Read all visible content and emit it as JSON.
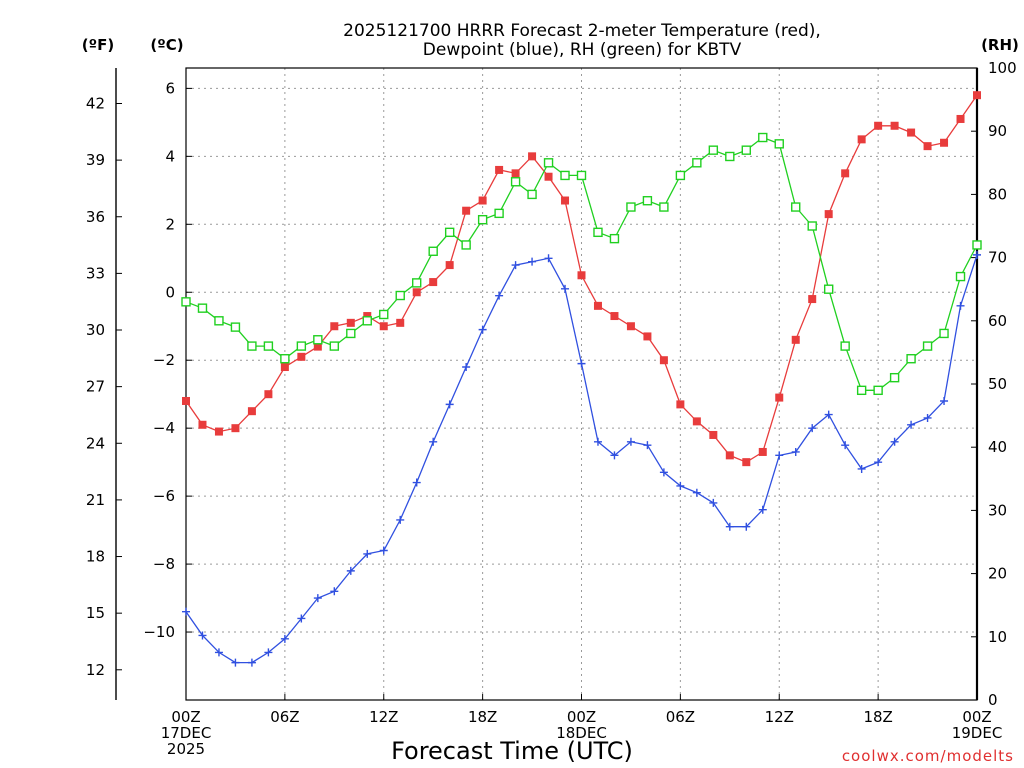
{
  "chart_data": {
    "type": "line",
    "title_line1": "2025121700 HRRR Forecast 2-meter Temperature (red),",
    "title_line2": "Dewpoint (blue), RH (green) for KBTV",
    "xlabel": "Forecast Time (UTC)",
    "credit": "coolwx.com/modelts",
    "units": {
      "fahrenheit": "(ºF)",
      "celsius": "(ºC)",
      "rh": "(RH)"
    },
    "x_hours": [
      0,
      1,
      2,
      3,
      4,
      5,
      6,
      7,
      8,
      9,
      10,
      11,
      12,
      13,
      14,
      15,
      16,
      17,
      18,
      19,
      20,
      21,
      22,
      23,
      24,
      25,
      26,
      27,
      28,
      29,
      30,
      31,
      32,
      33,
      34,
      35,
      36,
      37,
      38,
      39,
      40,
      41,
      42,
      43,
      44,
      45,
      46,
      47,
      48
    ],
    "xlim": [
      0,
      48
    ],
    "x_ticks": [
      {
        "hour": 0,
        "lines": [
          "00Z",
          "17DEC",
          "2025"
        ]
      },
      {
        "hour": 6,
        "lines": [
          "06Z"
        ]
      },
      {
        "hour": 12,
        "lines": [
          "12Z"
        ]
      },
      {
        "hour": 18,
        "lines": [
          "18Z"
        ]
      },
      {
        "hour": 24,
        "lines": [
          "00Z",
          "18DEC"
        ]
      },
      {
        "hour": 30,
        "lines": [
          "06Z"
        ]
      },
      {
        "hour": 36,
        "lines": [
          "12Z"
        ]
      },
      {
        "hour": 42,
        "lines": [
          "18Z"
        ]
      },
      {
        "hour": 48,
        "lines": [
          "00Z",
          "19DEC"
        ]
      }
    ],
    "y_celsius": {
      "lim": [
        -12,
        6.6
      ],
      "ticks": [
        "6",
        "4",
        "2",
        "0",
        "−2",
        "−4",
        "−6",
        "−8",
        "−10"
      ],
      "tick_values": [
        6,
        4,
        2,
        0,
        -2,
        -4,
        -6,
        -8,
        -10
      ]
    },
    "y_fahrenheit": {
      "ticks": [
        "42",
        "39",
        "36",
        "33",
        "30",
        "27",
        "24",
        "21",
        "18",
        "15",
        "12"
      ],
      "tick_values": [
        42,
        39,
        36,
        33,
        30,
        27,
        24,
        21,
        18,
        15,
        12
      ]
    },
    "y_rh": {
      "lim": [
        0,
        100
      ],
      "ticks": [
        "100",
        "90",
        "80",
        "70",
        "60",
        "50",
        "40",
        "30",
        "20",
        "10",
        "0"
      ],
      "tick_values": [
        100,
        90,
        80,
        70,
        60,
        50,
        40,
        30,
        20,
        10,
        0
      ]
    },
    "grid": true,
    "series": [
      {
        "key": "temperature",
        "axis": "celsius",
        "color": "#e83c3c",
        "marker": "filled-square",
        "values": [
          -3.2,
          -3.9,
          -4.1,
          -4.0,
          -3.5,
          -3.0,
          -2.2,
          -1.9,
          -1.6,
          -1.0,
          -0.9,
          -0.7,
          -1.0,
          -0.9,
          0.0,
          0.3,
          0.8,
          2.4,
          2.7,
          3.6,
          3.5,
          4.0,
          3.4,
          2.7,
          0.5,
          -0.4,
          -0.7,
          -1.0,
          -1.3,
          -2.0,
          -3.3,
          -3.8,
          -4.2,
          -4.8,
          -5.0,
          -4.7,
          -3.1,
          -1.4,
          -0.2,
          2.3,
          3.5,
          4.5,
          4.9,
          4.9,
          4.7,
          4.3,
          4.4,
          5.1,
          5.8
        ]
      },
      {
        "key": "dewpoint",
        "axis": "celsius",
        "color": "#3050e0",
        "marker": "plus",
        "values": [
          -9.4,
          -10.1,
          -10.6,
          -10.9,
          -10.9,
          -10.6,
          -10.2,
          -9.6,
          -9.0,
          -8.8,
          -8.2,
          -7.7,
          -7.6,
          -6.7,
          -5.6,
          -4.4,
          -3.3,
          -2.2,
          -1.1,
          -0.1,
          0.8,
          0.9,
          1.0,
          0.1,
          -2.1,
          -4.4,
          -4.8,
          -4.4,
          -4.5,
          -5.3,
          -5.7,
          -5.9,
          -6.2,
          -6.9,
          -6.9,
          -6.4,
          -4.8,
          -4.7,
          -4.0,
          -3.6,
          -4.5,
          -5.2,
          -5.0,
          -4.4,
          -3.9,
          -3.7,
          -3.2,
          -0.4,
          1.1
        ]
      },
      {
        "key": "rh",
        "axis": "rh",
        "color": "#20d020",
        "marker": "open-square",
        "values": [
          63,
          62,
          60,
          59,
          56,
          56,
          54,
          56,
          57,
          56,
          58,
          60,
          61,
          64,
          66,
          71,
          74,
          72,
          76,
          77,
          82,
          80,
          85,
          83,
          83,
          74,
          73,
          78,
          79,
          78,
          83,
          85,
          87,
          86,
          87,
          89,
          88,
          78,
          75,
          65,
          56,
          49,
          49,
          51,
          54,
          56,
          58,
          67,
          72
        ]
      }
    ]
  }
}
